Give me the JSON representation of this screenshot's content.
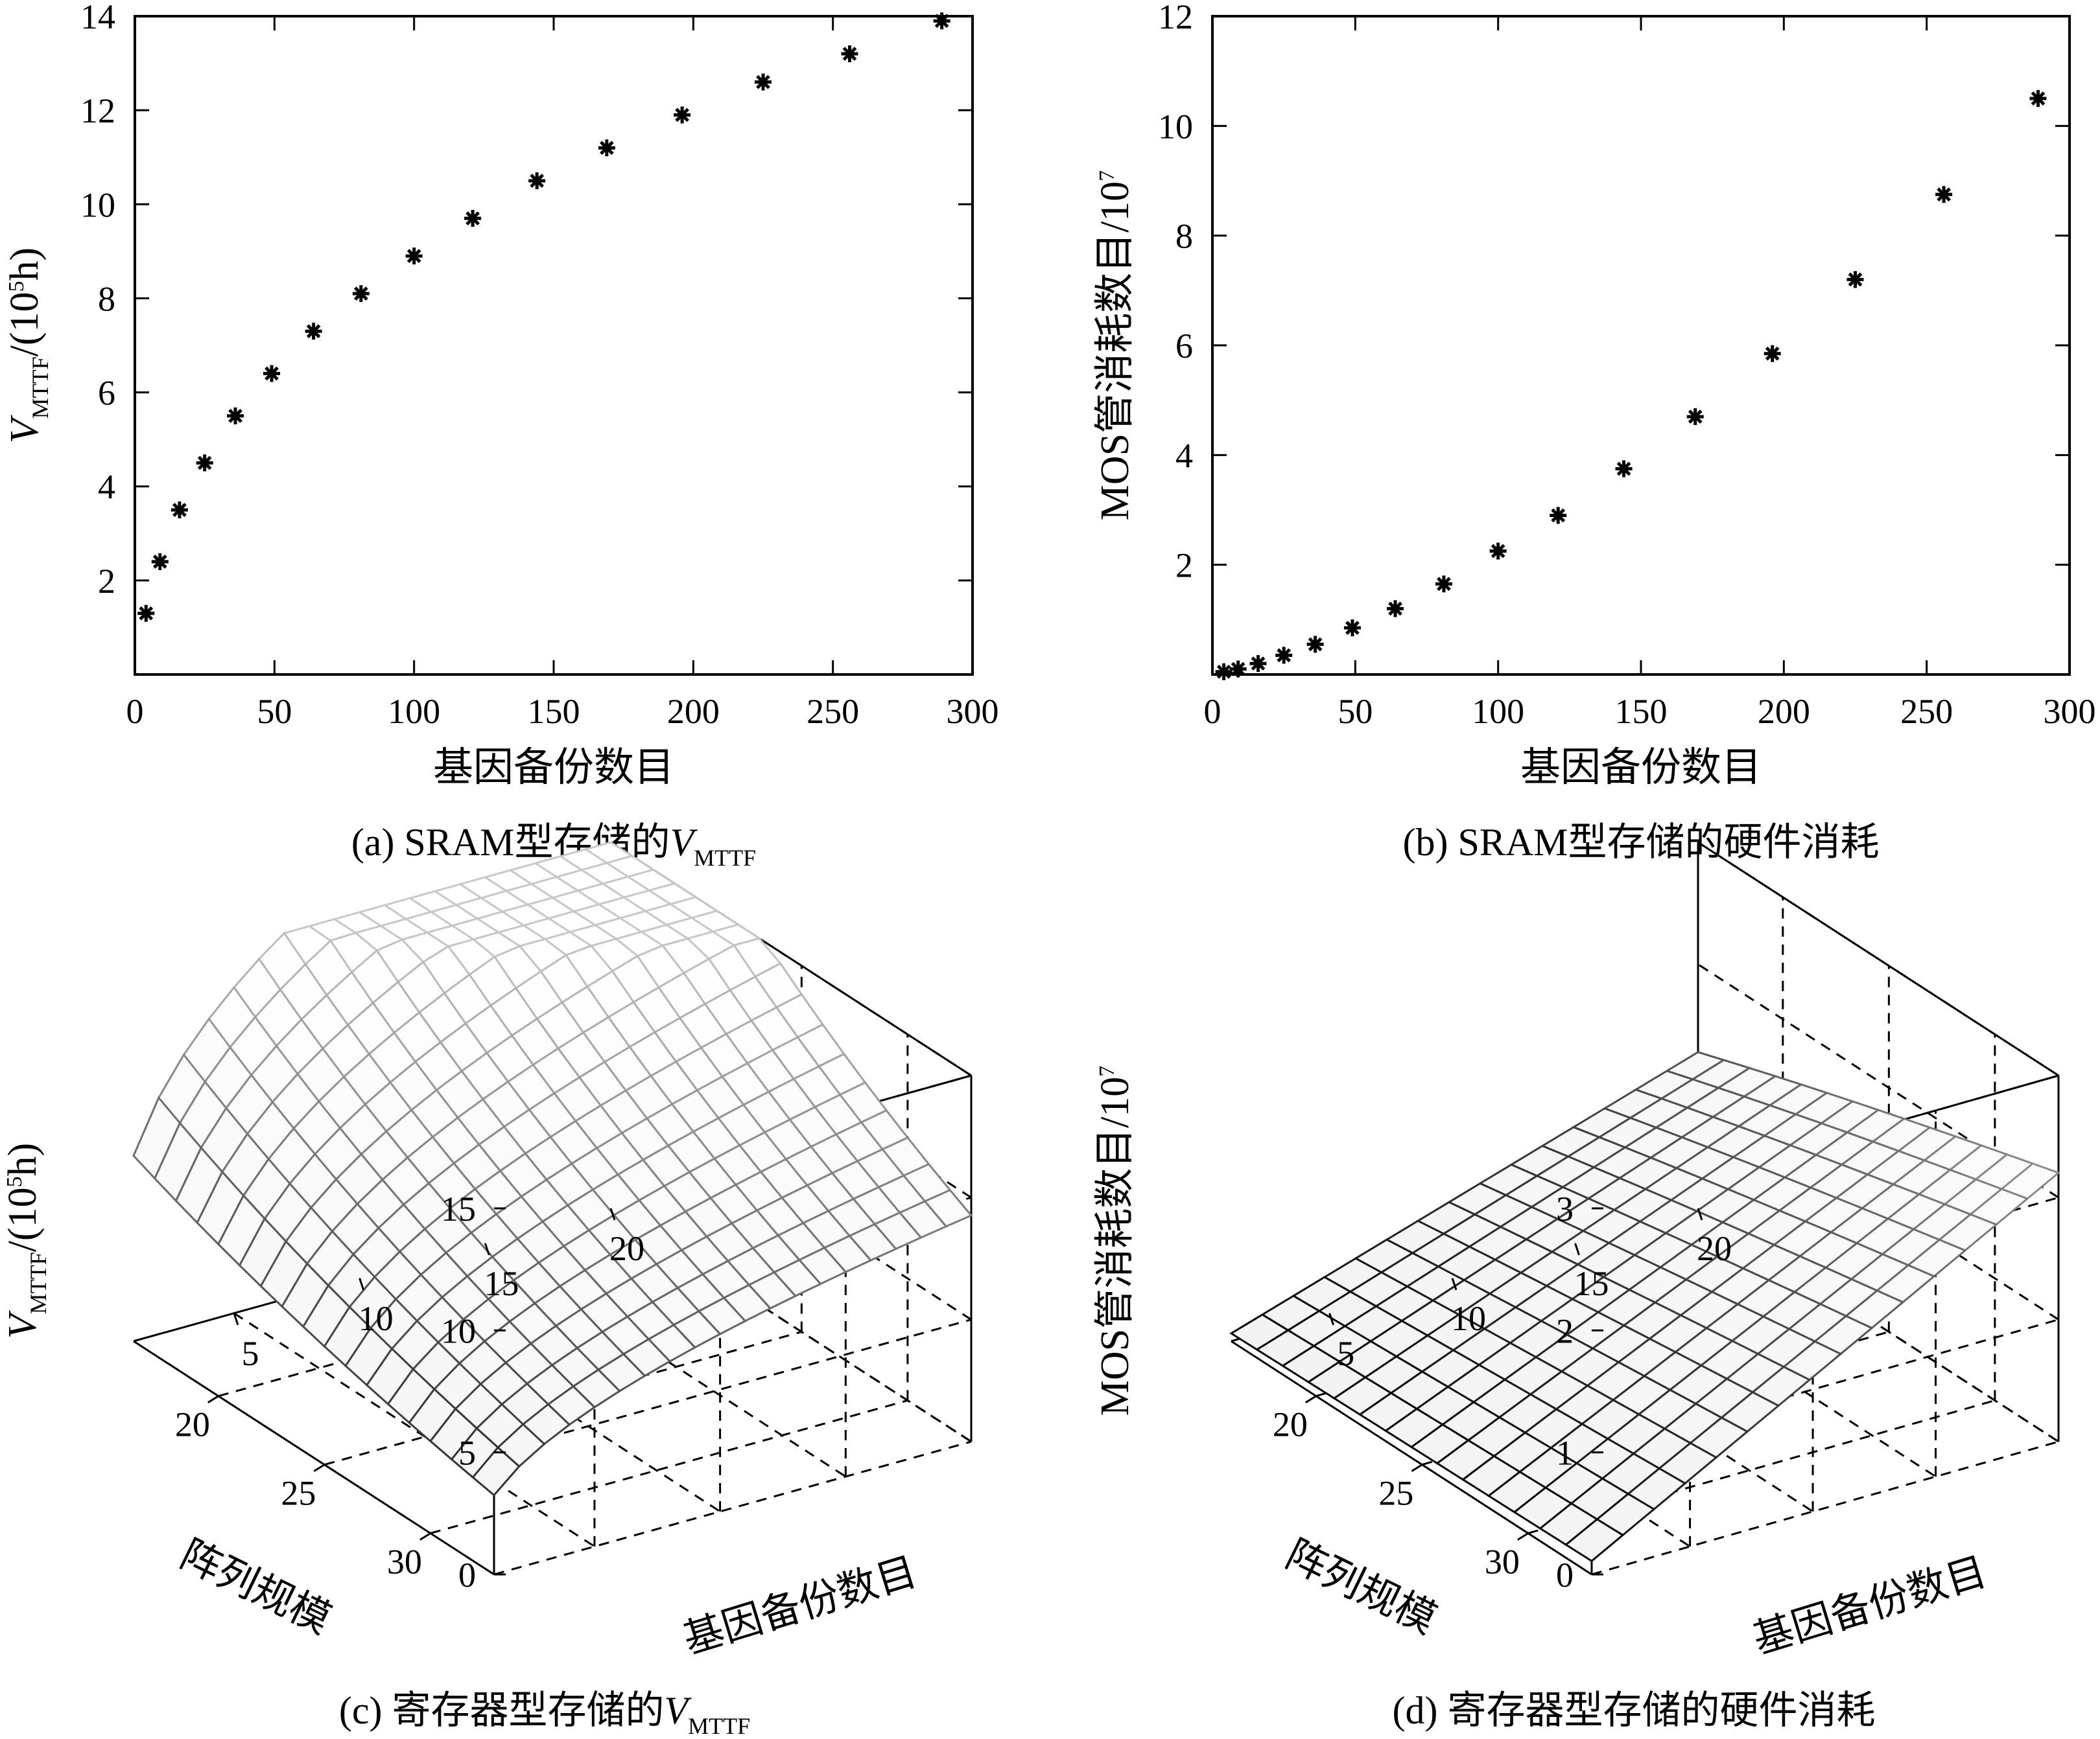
{
  "chart_data": [
    {
      "id": "a",
      "type": "scatter",
      "marker": "asterisk",
      "caption": {
        "prefix": "(a) SRAM型存储的",
        "var": "V",
        "sub": "MTTF"
      },
      "xlabel": "基因备份数目",
      "ylabel": {
        "var": "V",
        "sub": "MTTF",
        "unit_pre": "/(10",
        "unit_sup": "5",
        "unit_post": "h)"
      },
      "xlim": [
        0,
        300
      ],
      "ylim": [
        0,
        14
      ],
      "xticks": [
        "0",
        "50",
        "100",
        "150",
        "200",
        "250",
        "300"
      ],
      "yticks": [
        "2",
        "4",
        "6",
        "8",
        "10",
        "12",
        "14"
      ],
      "x": [
        4,
        9,
        16,
        25,
        36,
        49,
        64,
        81,
        100,
        121,
        144,
        169,
        196,
        225,
        256,
        289
      ],
      "y": [
        1.3,
        2.4,
        3.5,
        4.5,
        5.5,
        6.4,
        7.3,
        8.1,
        8.9,
        9.7,
        10.5,
        11.2,
        11.9,
        12.6,
        13.2,
        13.9
      ]
    },
    {
      "id": "b",
      "type": "scatter",
      "marker": "asterisk",
      "caption": {
        "text": "(b) SRAM型存储的硬件消耗"
      },
      "xlabel": "基因备份数目",
      "ylabel": {
        "pre": "MOS管消耗数目/10",
        "sup": "7"
      },
      "xlim": [
        0,
        300
      ],
      "ylim": [
        0,
        12
      ],
      "xticks": [
        "0",
        "50",
        "100",
        "150",
        "200",
        "250",
        "300"
      ],
      "yticks": [
        "2",
        "4",
        "6",
        "8",
        "10",
        "12"
      ],
      "x": [
        4,
        9,
        16,
        25,
        36,
        49,
        64,
        81,
        100,
        121,
        144,
        169,
        196,
        225,
        256,
        289
      ],
      "y": [
        0.05,
        0.1,
        0.2,
        0.35,
        0.55,
        0.85,
        1.2,
        1.65,
        2.25,
        2.9,
        3.75,
        4.7,
        5.85,
        7.2,
        8.75,
        10.5
      ]
    },
    {
      "id": "c",
      "type": "surface",
      "caption": {
        "prefix": "(c) 寄存器型存储的",
        "var": "V",
        "sub": "MTTF"
      },
      "xlabel": "基因备份数目",
      "ylabel": "阵列规模",
      "zlabel": {
        "var": "V",
        "sub": "MTTF",
        "unit_pre": "/(10",
        "unit_sup": "5",
        "unit_post": "h)"
      },
      "xlim": [
        1,
        20
      ],
      "ylim": [
        16,
        33
      ],
      "zlim": [
        0,
        15
      ],
      "xticks": [
        "5",
        "10",
        "15",
        "20"
      ],
      "yticks": [
        "20",
        "25",
        "30"
      ],
      "zticks": [
        "0",
        "5",
        "10",
        "15"
      ],
      "grid_x": [
        1,
        20,
        20
      ],
      "grid_y": [
        16,
        33,
        18
      ],
      "z_model": {
        "a": 7.6,
        "b": 0.35,
        "c": 0.05,
        "min": 0.5
      }
    },
    {
      "id": "d",
      "type": "surface",
      "caption": {
        "text": "(d) 寄存器型存储的硬件消耗"
      },
      "xlabel": "基因备份数目",
      "ylabel": "阵列规模",
      "zlabel": {
        "pre": "MOS管消耗数目/10",
        "sup": "7"
      },
      "xlim": [
        1,
        20
      ],
      "ylim": [
        16,
        33
      ],
      "zlim": [
        0,
        3
      ],
      "xticks": [
        "5",
        "10",
        "15",
        "20"
      ],
      "yticks": [
        "20",
        "25",
        "30"
      ],
      "zticks": [
        "0",
        "1",
        "2",
        "3"
      ],
      "grid_x": [
        1,
        20,
        16
      ],
      "grid_y": [
        16,
        33,
        15
      ],
      "z_model": {
        "base": 0.008,
        "xcoef": 0.38
      }
    }
  ]
}
